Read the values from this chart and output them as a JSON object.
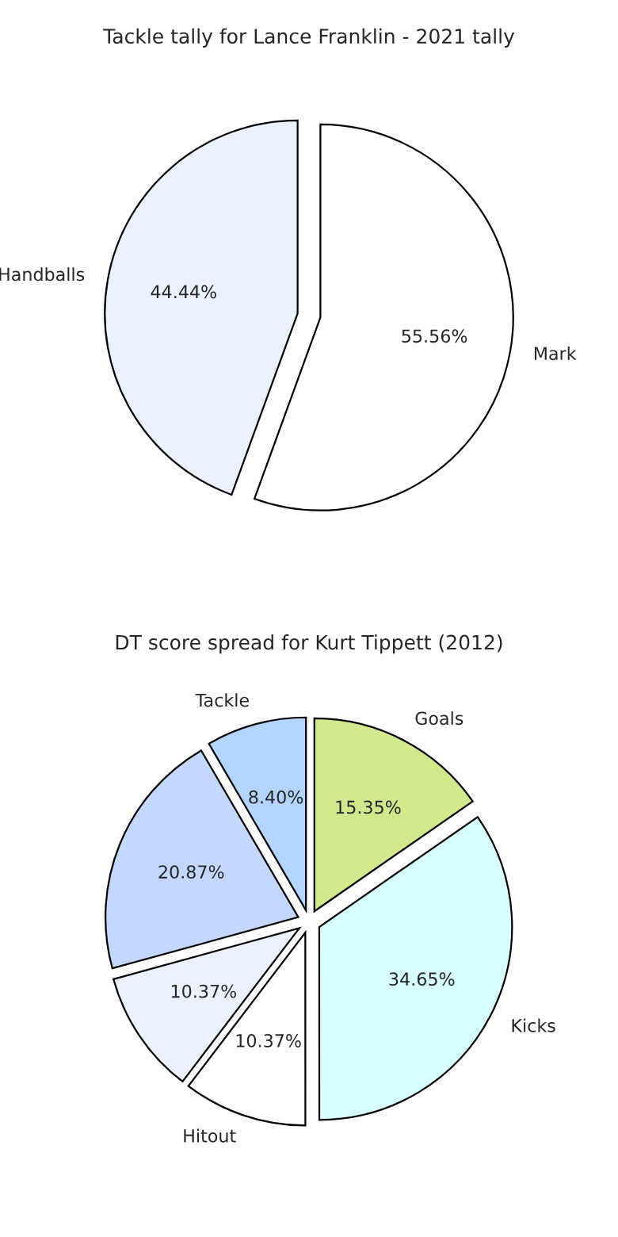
{
  "chart_data": [
    {
      "type": "pie",
      "title": "Tackle tally for Lance Franklin - 2021 tally",
      "categories": [
        "Mark",
        "Handballs"
      ],
      "values": [
        55.56,
        44.44
      ],
      "colors": [
        "#ffffff",
        "#eaf2ff"
      ],
      "value_labels": [
        "55.56%",
        "44.44%"
      ]
    },
    {
      "type": "pie",
      "title": "DT score spread for Kurt Tippett (2012)",
      "categories": [
        "Goals",
        "Kicks",
        "Hitout",
        null,
        null,
        "Tackle"
      ],
      "values": [
        15.35,
        34.65,
        10.37,
        10.37,
        20.87,
        8.4
      ],
      "colors": [
        "#d0e98c",
        "#d8ffff",
        "#ffffff",
        "#eaf2ff",
        "#c4d8ff",
        "#b3d5ff"
      ],
      "value_labels": [
        "15.35%",
        "34.65%",
        "10.37%",
        "10.37%",
        "20.87%",
        "8.40%"
      ]
    }
  ]
}
